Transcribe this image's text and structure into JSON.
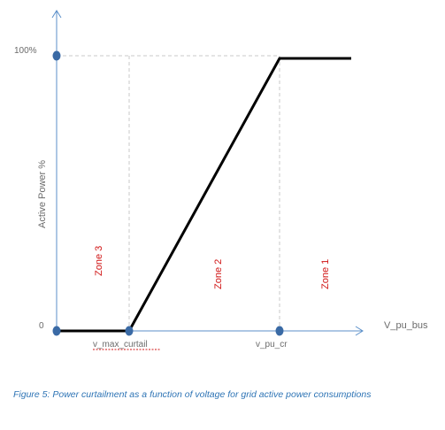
{
  "chart_data": {
    "type": "line",
    "ylabel": "Active Power %",
    "xlabel": "V_pu_bus",
    "y_tick_labels": [
      "0",
      "100%"
    ],
    "x_tick_labels": [
      "v_max_curtail",
      "v_pu_cr"
    ],
    "zones": [
      "Zone 3",
      "Zone 2",
      "Zone 1"
    ],
    "series": [
      {
        "points": [
          {
            "x": "origin",
            "y": 0
          },
          {
            "x": "v_max_curtail",
            "y": 0
          },
          {
            "x": "v_pu_cr",
            "y": 100
          },
          {
            "x": "beyond",
            "y": 100
          }
        ]
      }
    ],
    "colors": {
      "line": "#000000",
      "axis": "#5b8fc9",
      "marker": "#3a6aa5",
      "zone_text": "#d01414",
      "guide": "#c8c8c8"
    }
  },
  "caption": "Figure 5: Power curtailment as a function of voltage for grid active power consumptions"
}
